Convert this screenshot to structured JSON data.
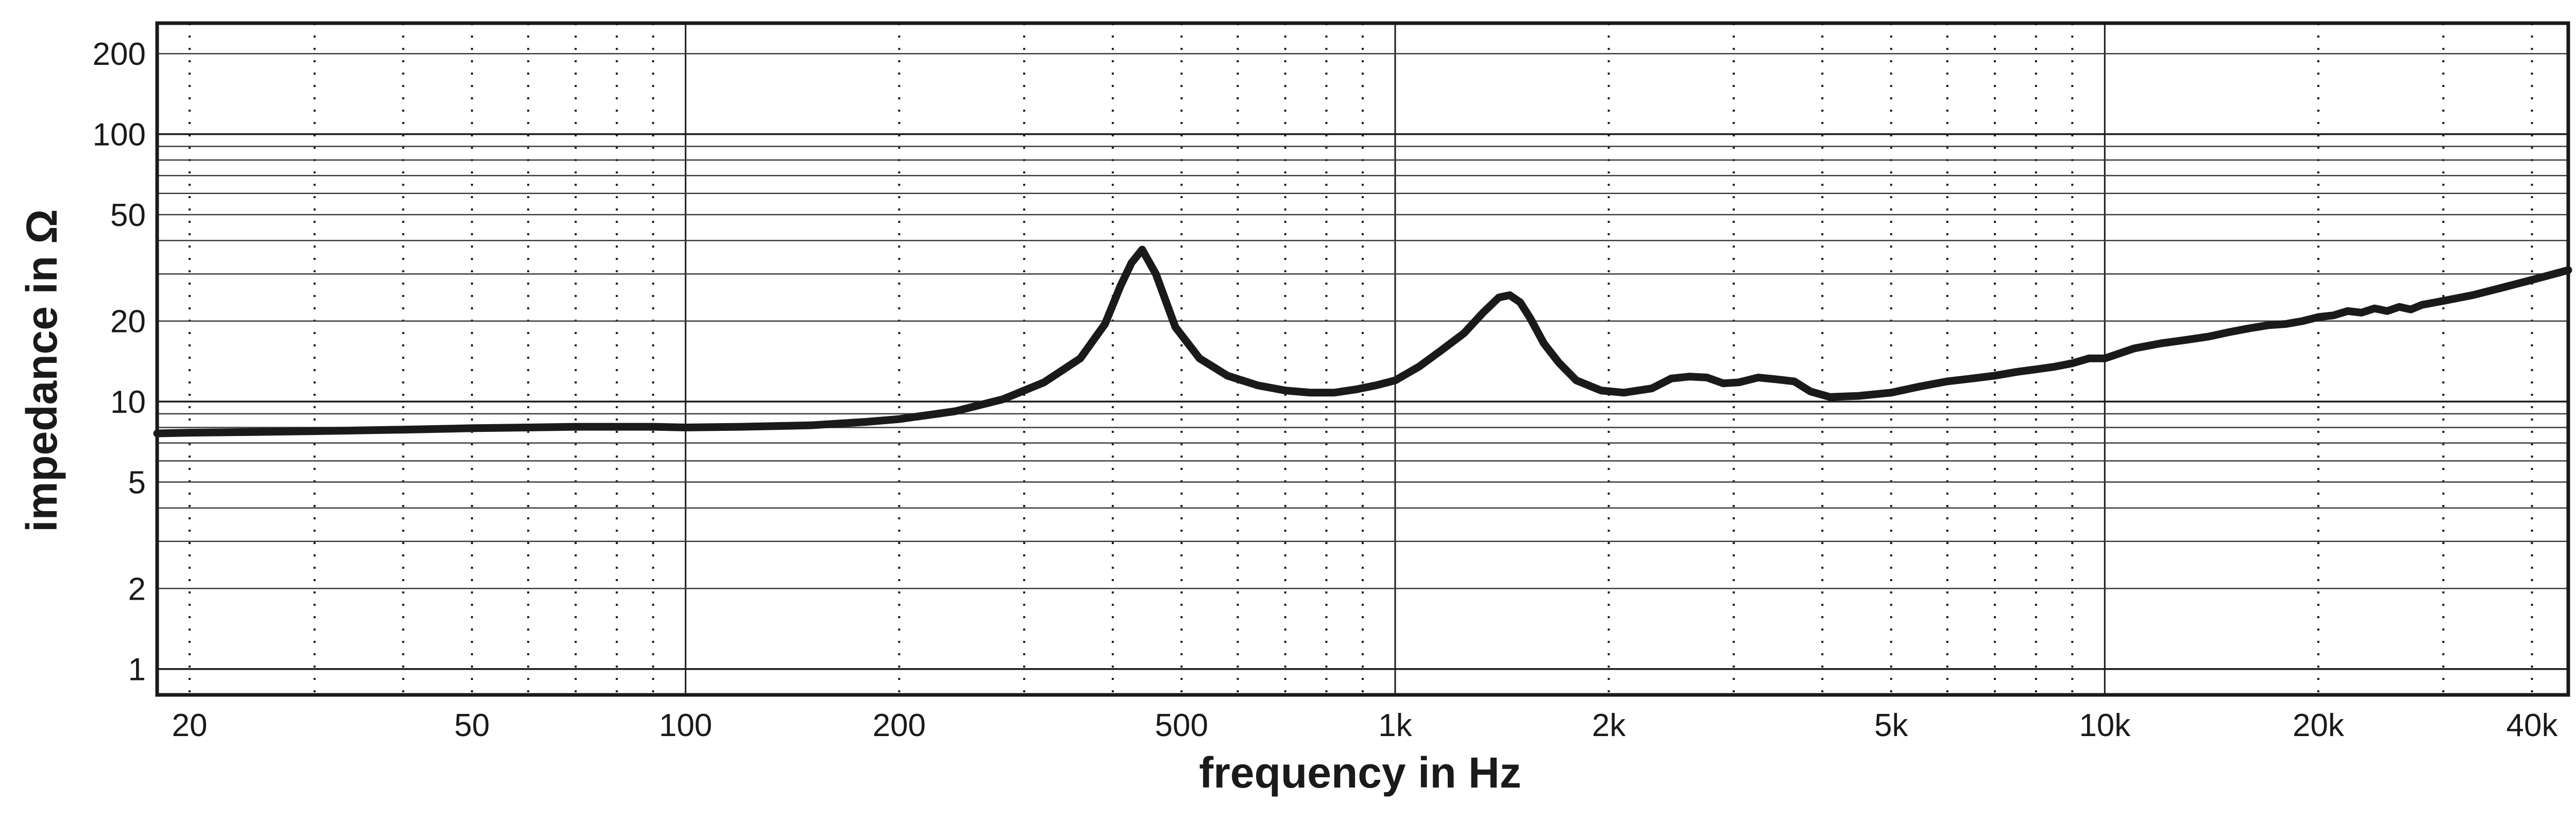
{
  "chart_data": {
    "type": "line",
    "title": "",
    "xlabel": "frequency in Hz",
    "ylabel": "impedance in Ω",
    "x_scale": "log",
    "y_scale": "log",
    "xlim": [
      18,
      45000
    ],
    "ylim": [
      0.8,
      260
    ],
    "grid": true,
    "legend": "none",
    "x_ticks": [
      20,
      50,
      100,
      200,
      500,
      1000,
      2000,
      5000,
      10000,
      20000,
      40000
    ],
    "x_tick_labels": [
      "20",
      "50",
      "100",
      "200",
      "500",
      "1k",
      "2k",
      "5k",
      "10k",
      "20k",
      "40k"
    ],
    "y_ticks": [
      1,
      2,
      5,
      10,
      20,
      50,
      100,
      200
    ],
    "y_tick_labels": [
      "1",
      "2",
      "5",
      "10",
      "20",
      "50",
      "100",
      "200"
    ],
    "series": [
      {
        "color": "#1a1a1a",
        "x": [
          18,
          20,
          25,
          30,
          40,
          50,
          60,
          70,
          80,
          90,
          100,
          120,
          150,
          180,
          200,
          240,
          280,
          320,
          360,
          390,
          410,
          425,
          440,
          460,
          490,
          530,
          580,
          640,
          700,
          760,
          820,
          880,
          940,
          1000,
          1080,
          1160,
          1250,
          1330,
          1400,
          1450,
          1500,
          1550,
          1620,
          1700,
          1800,
          1950,
          2100,
          2300,
          2450,
          2600,
          2750,
          2900,
          3050,
          3250,
          3450,
          3650,
          3850,
          4100,
          4500,
          5000,
          5500,
          6000,
          6500,
          7000,
          7500,
          8000,
          8500,
          9000,
          9500,
          10000,
          11000,
          12000,
          13000,
          14000,
          15000,
          16000,
          17000,
          18000,
          19000,
          20000,
          21000,
          22000,
          23000,
          24000,
          25000,
          26000,
          27000,
          28000,
          30000,
          33000,
          36000,
          40000,
          45000
        ],
        "y": [
          7.6,
          7.65,
          7.7,
          7.75,
          7.85,
          7.95,
          8.0,
          8.05,
          8.05,
          8.05,
          8.0,
          8.05,
          8.15,
          8.4,
          8.6,
          9.2,
          10.2,
          11.8,
          14.5,
          19.5,
          27,
          33,
          37,
          30,
          19,
          14.5,
          12.5,
          11.5,
          11.0,
          10.8,
          10.8,
          11.1,
          11.5,
          12.0,
          13.5,
          15.5,
          18.0,
          21.5,
          24.5,
          25.0,
          23.5,
          20.5,
          16.5,
          14.0,
          12.0,
          11.0,
          10.8,
          11.2,
          12.2,
          12.4,
          12.3,
          11.7,
          11.8,
          12.3,
          12.1,
          11.9,
          10.9,
          10.4,
          10.5,
          10.8,
          11.4,
          11.9,
          12.2,
          12.5,
          12.9,
          13.2,
          13.5,
          13.9,
          14.5,
          14.5,
          15.8,
          16.5,
          17.0,
          17.5,
          18.2,
          18.8,
          19.3,
          19.5,
          20.0,
          20.7,
          21.0,
          21.8,
          21.5,
          22.3,
          21.8,
          22.6,
          22.1,
          23.0,
          23.8,
          25.0,
          26.5,
          28.5,
          31.0
        ]
      }
    ]
  }
}
